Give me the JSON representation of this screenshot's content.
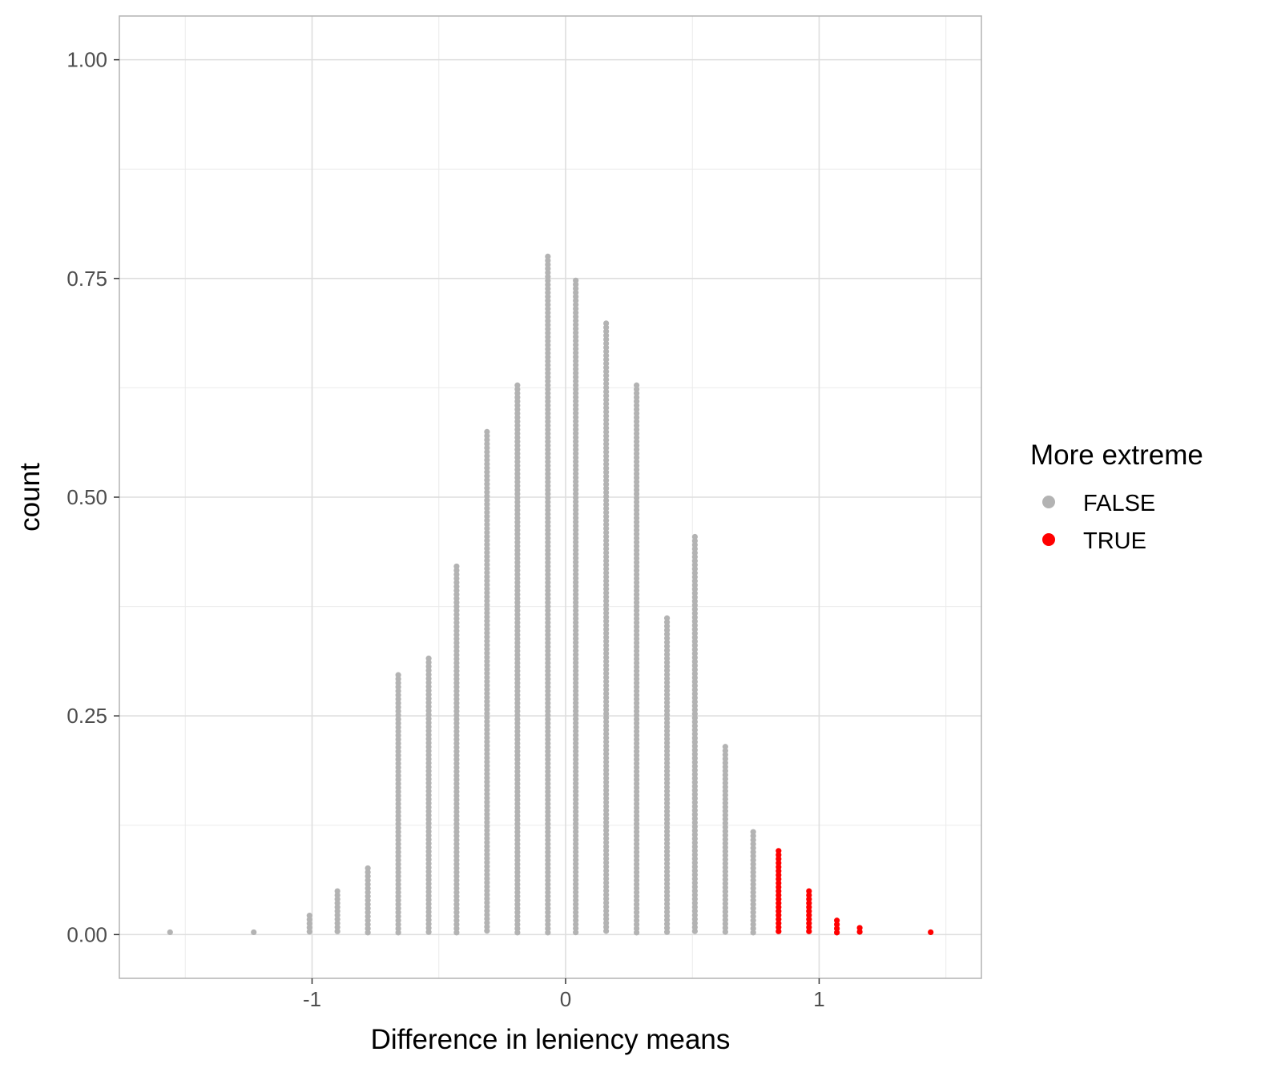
{
  "chart_data": {
    "type": "scatter",
    "subtype": "dotplot",
    "title": "",
    "xlabel": "Difference in leniency means",
    "ylabel": "count",
    "xlim": [
      -1.76,
      1.64
    ],
    "ylim": [
      -0.05,
      1.05
    ],
    "x_ticks": [
      -1,
      0,
      1
    ],
    "x_tick_labels": [
      "-1",
      "0",
      "1"
    ],
    "y_ticks": [
      0,
      0.25,
      0.5,
      0.75,
      1.0
    ],
    "y_tick_labels": [
      "0.00",
      "0.25",
      "0.50",
      "0.75",
      "1.00"
    ],
    "grid": true,
    "legend": {
      "title": "More extreme",
      "placement": "right",
      "entries": [
        {
          "label": "FALSE",
          "color": "#b3b3b3"
        },
        {
          "label": "TRUE",
          "color": "#ff0000"
        }
      ]
    },
    "dot_step": 0.0046,
    "columns": [
      {
        "x": -1.56,
        "count": 0.005,
        "group": "FALSE"
      },
      {
        "x": -1.23,
        "count": 0.005,
        "group": "FALSE"
      },
      {
        "x": -1.01,
        "count": 0.024,
        "group": "FALSE"
      },
      {
        "x": -0.9,
        "count": 0.052,
        "group": "FALSE"
      },
      {
        "x": -0.78,
        "count": 0.078,
        "group": "FALSE"
      },
      {
        "x": -0.66,
        "count": 0.298,
        "group": "FALSE"
      },
      {
        "x": -0.54,
        "count": 0.318,
        "group": "FALSE"
      },
      {
        "x": -0.43,
        "count": 0.423,
        "group": "FALSE"
      },
      {
        "x": -0.31,
        "count": 0.577,
        "group": "FALSE"
      },
      {
        "x": -0.19,
        "count": 0.629,
        "group": "FALSE"
      },
      {
        "x": -0.07,
        "count": 0.776,
        "group": "FALSE"
      },
      {
        "x": 0.04,
        "count": 0.75,
        "group": "FALSE"
      },
      {
        "x": 0.16,
        "count": 0.701,
        "group": "FALSE"
      },
      {
        "x": 0.28,
        "count": 0.629,
        "group": "FALSE"
      },
      {
        "x": 0.4,
        "count": 0.364,
        "group": "FALSE"
      },
      {
        "x": 0.51,
        "count": 0.457,
        "group": "FALSE"
      },
      {
        "x": 0.63,
        "count": 0.217,
        "group": "FALSE"
      },
      {
        "x": 0.74,
        "count": 0.118,
        "group": "FALSE"
      },
      {
        "x": 0.84,
        "count": 0.098,
        "group": "TRUE"
      },
      {
        "x": 0.96,
        "count": 0.052,
        "group": "TRUE"
      },
      {
        "x": 1.07,
        "count": 0.017,
        "group": "TRUE"
      },
      {
        "x": 1.16,
        "count": 0.01,
        "group": "TRUE"
      },
      {
        "x": 1.44,
        "count": 0.005,
        "group": "TRUE"
      }
    ]
  }
}
